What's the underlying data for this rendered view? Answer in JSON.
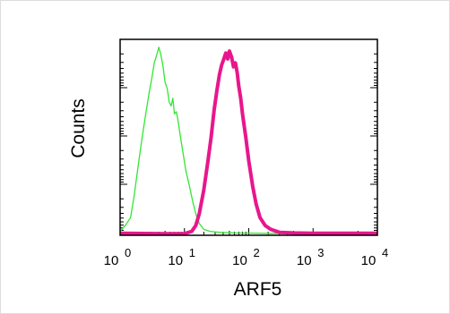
{
  "chart_data": {
    "type": "line",
    "xlabel": "ARF5",
    "ylabel": "Counts",
    "x_scale": "log",
    "xlim": [
      1,
      10000
    ],
    "ylim": [
      0,
      100
    ],
    "grid": false,
    "legend": "none",
    "x_ticks": [
      {
        "base": "10",
        "exp": "0",
        "value": 1
      },
      {
        "base": "10",
        "exp": "1",
        "value": 10
      },
      {
        "base": "10",
        "exp": "2",
        "value": 100
      },
      {
        "base": "10",
        "exp": "3",
        "value": 1000
      },
      {
        "base": "10",
        "exp": "4",
        "value": 10000
      }
    ],
    "series": [
      {
        "color": "#33e633",
        "stroke_width": 1.3,
        "points": [
          [
            1,
            2
          ],
          [
            1.2,
            5
          ],
          [
            1.45,
            9
          ],
          [
            1.65,
            20
          ],
          [
            1.9,
            35
          ],
          [
            2.2,
            50
          ],
          [
            2.5,
            62
          ],
          [
            2.8,
            72
          ],
          [
            3.1,
            80
          ],
          [
            3.4,
            88
          ],
          [
            3.7,
            92
          ],
          [
            4.0,
            96
          ],
          [
            4.3,
            92
          ],
          [
            4.6,
            87
          ],
          [
            5.0,
            78
          ],
          [
            5.4,
            75
          ],
          [
            5.8,
            68
          ],
          [
            6.2,
            66
          ],
          [
            6.6,
            70
          ],
          [
            7.0,
            62
          ],
          [
            7.5,
            63
          ],
          [
            8.0,
            58
          ],
          [
            8.7,
            50
          ],
          [
            9.5,
            42
          ],
          [
            10.5,
            33
          ],
          [
            12,
            25
          ],
          [
            13.5,
            17
          ],
          [
            15,
            11
          ],
          [
            17,
            6
          ],
          [
            20,
            3
          ],
          [
            25,
            2
          ],
          [
            35,
            1.5
          ],
          [
            60,
            1.2
          ],
          [
            150,
            1
          ],
          [
            500,
            0.8
          ],
          [
            2000,
            0.5
          ],
          [
            10000,
            0.5
          ]
        ]
      },
      {
        "color": "#e8168c",
        "stroke_width": 4,
        "points": [
          [
            1,
            1
          ],
          [
            5,
            0.8
          ],
          [
            10,
            0.8
          ],
          [
            13,
            2
          ],
          [
            15,
            5
          ],
          [
            17,
            11
          ],
          [
            20,
            23
          ],
          [
            23,
            37
          ],
          [
            26,
            50
          ],
          [
            29,
            64
          ],
          [
            32,
            74
          ],
          [
            35,
            82
          ],
          [
            38,
            87
          ],
          [
            41,
            90
          ],
          [
            44,
            93
          ],
          [
            47,
            90
          ],
          [
            50,
            94
          ],
          [
            54,
            91
          ],
          [
            58,
            86
          ],
          [
            62,
            88
          ],
          [
            66,
            83
          ],
          [
            70,
            76
          ],
          [
            75,
            70
          ],
          [
            80,
            62
          ],
          [
            90,
            50
          ],
          [
            100,
            38
          ],
          [
            115,
            25
          ],
          [
            130,
            16
          ],
          [
            150,
            9
          ],
          [
            180,
            5
          ],
          [
            220,
            3
          ],
          [
            300,
            1.5
          ],
          [
            500,
            1.2
          ],
          [
            1000,
            1
          ],
          [
            3000,
            1
          ],
          [
            10000,
            1
          ]
        ]
      }
    ]
  }
}
